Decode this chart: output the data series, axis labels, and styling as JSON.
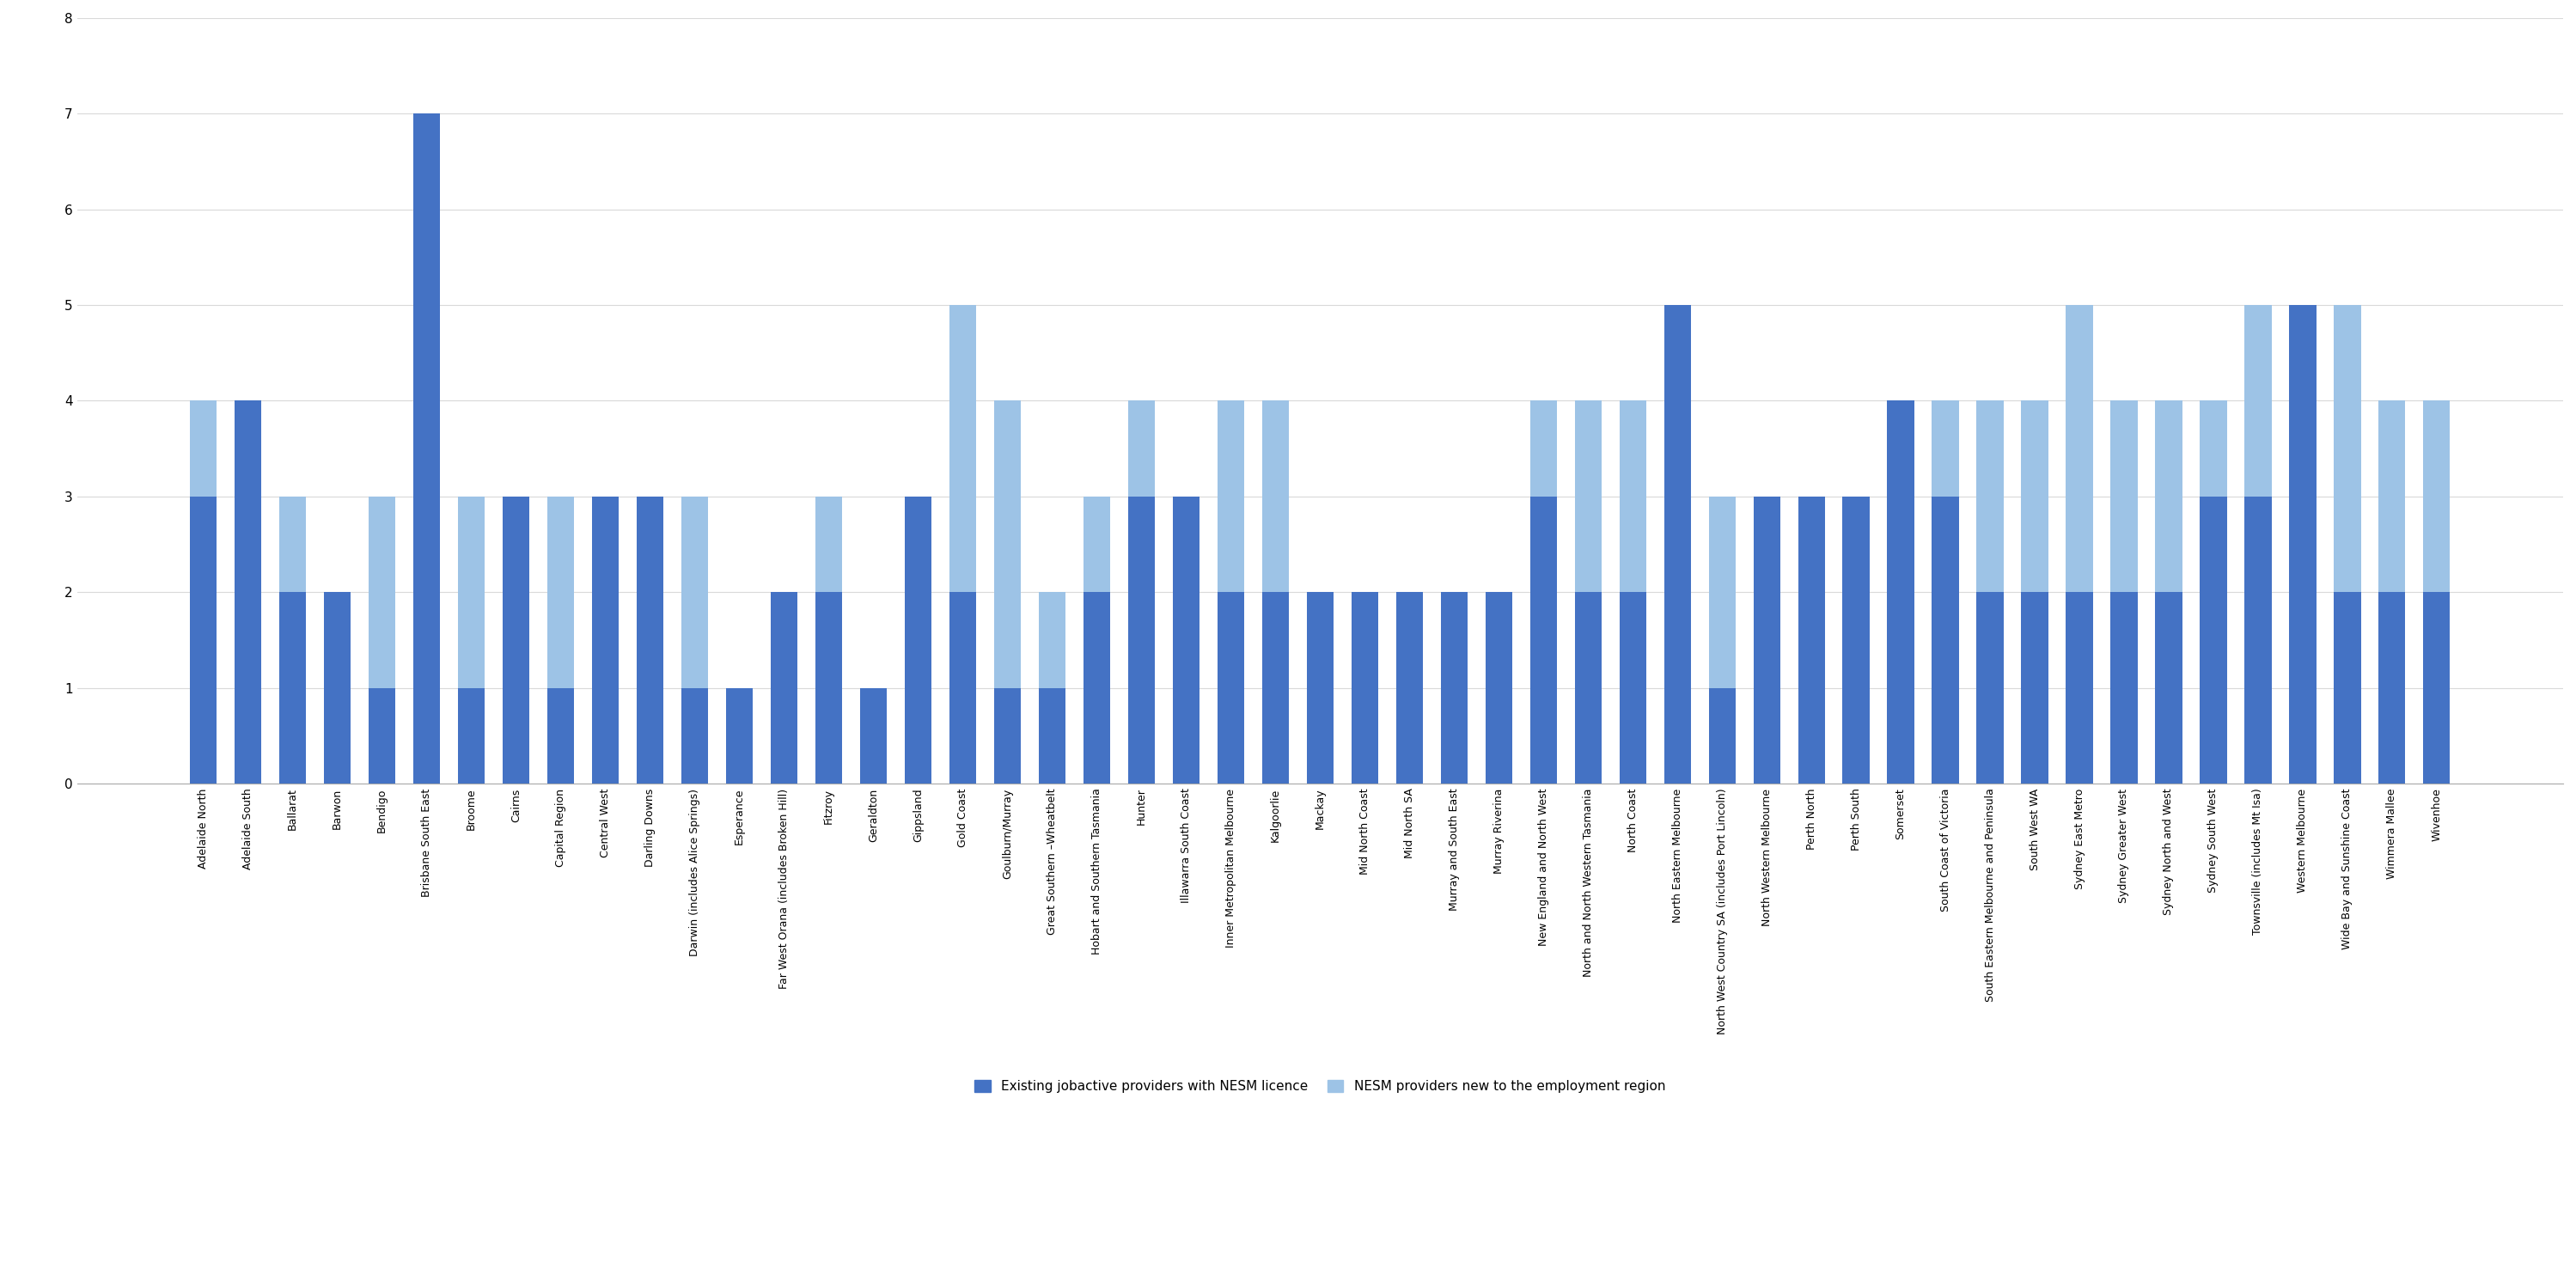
{
  "categories": [
    "Adelaide North",
    "Adelaide South",
    "Ballarat",
    "Barwon",
    "Bendigo",
    "Brisbane South East",
    "Broome",
    "Cairns",
    "Capital Region",
    "Central West",
    "Darling Downs",
    "Darwin (includes Alice Springs)",
    "Esperance",
    "Far West Orana (includes Broken Hill)",
    "Fitzroy",
    "Geraldton",
    "Gippsland",
    "Gold Coast",
    "Goulburn/Murray",
    "Great Southern –Wheatbelt",
    "Hobart and Southern Tasmania",
    "Hunter",
    "Illawarra South Coast",
    "Inner Metropolitan Melbourne",
    "Kalgoorlie",
    "Mackay",
    "Mid North Coast",
    "Mid North SA",
    "Murray and South East",
    "Murray Riverina",
    "New England and North West",
    "North and North Western Tasmania",
    "North Coast",
    "North Eastern Melbourne",
    "North West Country SA (includes Port Lincoln)",
    "North Western Melbourne",
    "Perth North",
    "Perth South",
    "Somerset",
    "South Coast of Victoria",
    "South Eastern Melbourne and Peninsula",
    "South West WA",
    "Sydney East Metro",
    "Sydney Greater West",
    "Sydney North and West",
    "Sydney South West",
    "Townsville (includes Mt Isa)",
    "Western Melbourne",
    "Wide Bay and Sunshine Coast",
    "Wimmera Mallee",
    "Wivenhoe"
  ],
  "existing": [
    3,
    4,
    2,
    2,
    1,
    7,
    1,
    3,
    1,
    3,
    3,
    1,
    1,
    2,
    2,
    1,
    3,
    2,
    1,
    1,
    2,
    3,
    3,
    2,
    2,
    2,
    2,
    2,
    2,
    2,
    3,
    2,
    2,
    5,
    1,
    3,
    3,
    3,
    4,
    3,
    2,
    2,
    2,
    2,
    2,
    3,
    3,
    5,
    2,
    2,
    2
  ],
  "new_providers": [
    1,
    0,
    1,
    0,
    2,
    0,
    2,
    0,
    2,
    0,
    0,
    2,
    0,
    0,
    1,
    0,
    0,
    3,
    3,
    1,
    1,
    1,
    0,
    2,
    2,
    0,
    0,
    0,
    0,
    0,
    1,
    2,
    2,
    0,
    2,
    0,
    0,
    0,
    0,
    1,
    2,
    2,
    3,
    2,
    2,
    1,
    2,
    0,
    3,
    2,
    2
  ],
  "color_existing": "#4472C4",
  "color_new": "#9DC3E6",
  "background_color": "#FFFFFF",
  "grid_color": "#D9D9D9",
  "ylim": [
    0,
    8
  ],
  "yticks": [
    0,
    1,
    2,
    3,
    4,
    5,
    6,
    7,
    8
  ],
  "legend_existing": "Existing jobactive providers with NESM licence",
  "legend_new": "NESM providers new to the employment region",
  "bar_width": 0.6,
  "tick_fontsize": 9,
  "ytick_fontsize": 11,
  "legend_fontsize": 11
}
